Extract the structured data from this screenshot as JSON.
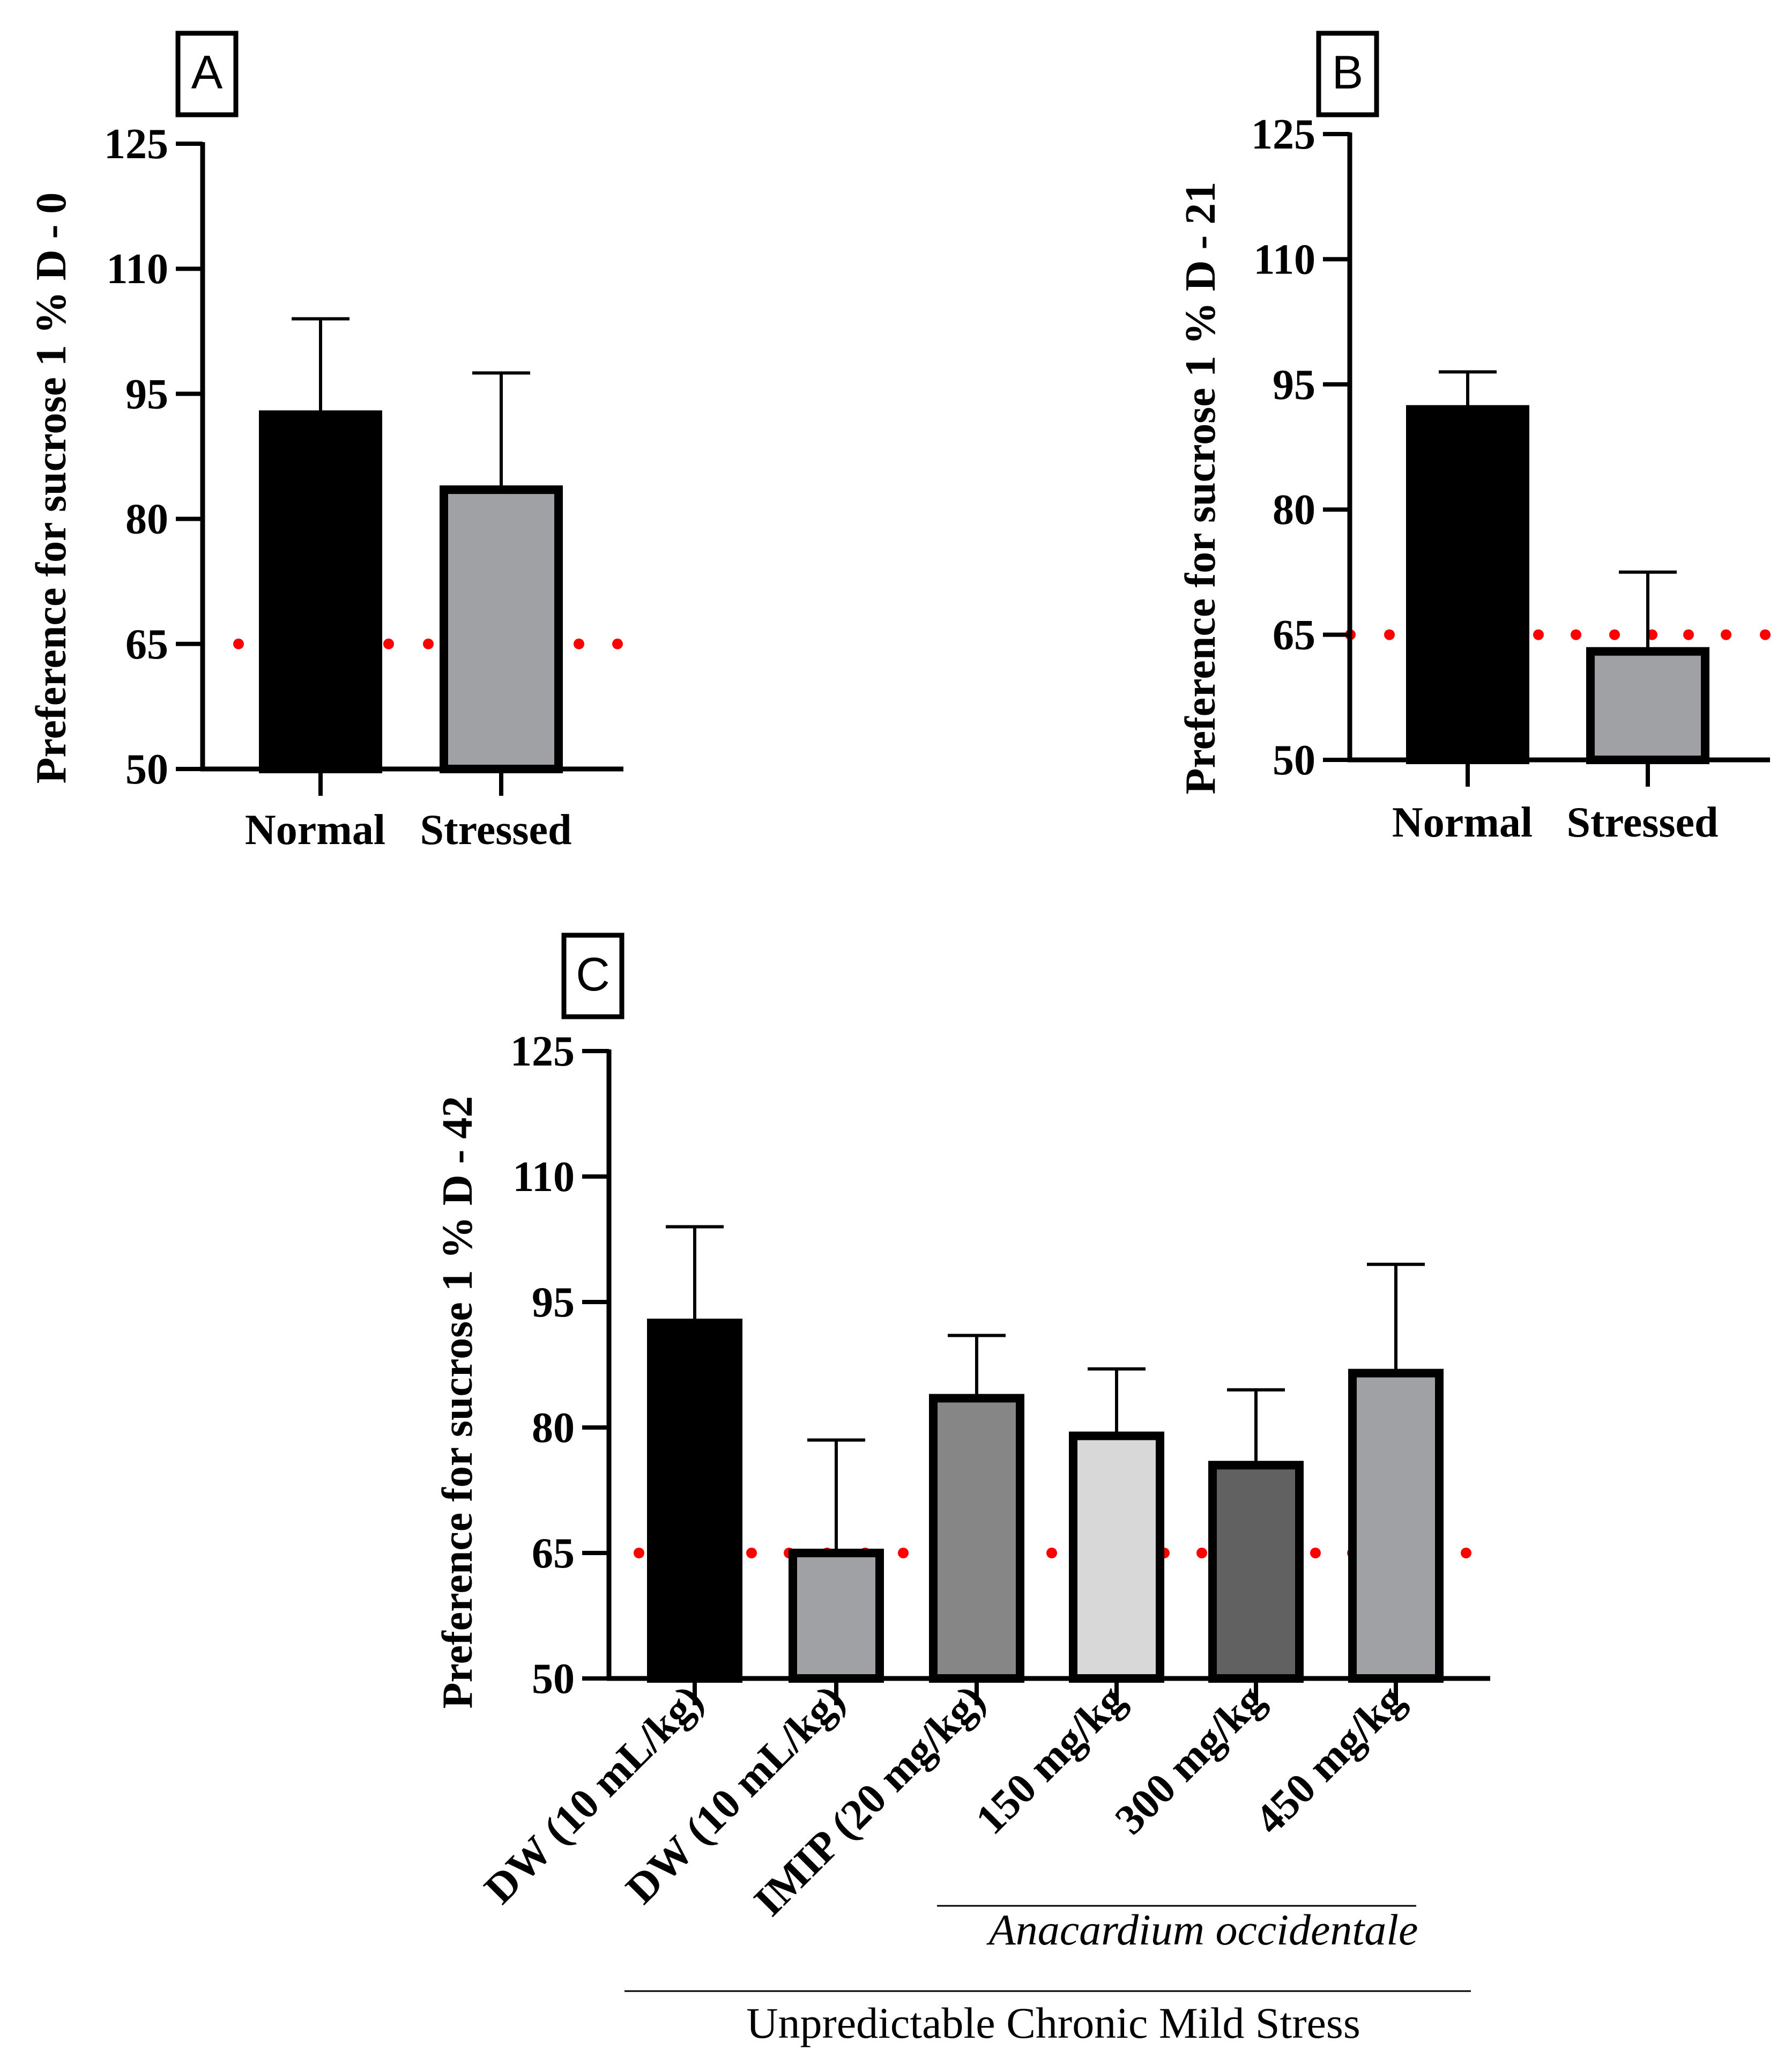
{
  "colors": {
    "axis": "#000000",
    "reference_line": "#ff0000",
    "bar_black": "#000000",
    "bar_gray": "#a0a1a5",
    "bar_dark_gray": "#868686",
    "bar_light_gray": "#d8d8d8",
    "bar_charcoal": "#616161"
  },
  "chart_data": [
    {
      "panel": "A",
      "type": "bar",
      "ylabel": "Preference for sucrose 1 % D - 0",
      "ylim": [
        50,
        125
      ],
      "yticks": [
        50,
        65,
        80,
        95,
        110,
        125
      ],
      "reference_line": 65,
      "categories": [
        "Normal",
        "Stressed"
      ],
      "values": [
        92.5,
        83.5
      ],
      "errors": [
        11.5,
        14
      ],
      "fills": [
        "bar_black",
        "bar_gray"
      ]
    },
    {
      "panel": "B",
      "type": "bar",
      "ylabel": "Preference for sucrose 1 % D - 21",
      "ylim": [
        50,
        125
      ],
      "yticks": [
        50,
        65,
        80,
        95,
        110,
        125
      ],
      "reference_line": 65,
      "categories": [
        "Normal",
        "Stressed"
      ],
      "values": [
        92,
        63
      ],
      "errors": [
        4.5,
        9.5
      ],
      "fills": [
        "bar_black",
        "bar_gray"
      ]
    },
    {
      "panel": "C",
      "type": "bar",
      "ylabel": "Preference for sucrose 1 % D - 42",
      "ylim": [
        50,
        125
      ],
      "yticks": [
        50,
        65,
        80,
        95,
        110,
        125
      ],
      "reference_line": 65,
      "categories": [
        "DW (10 mL/kg)",
        "DW (10 mL/kg)",
        "IMIP (20 mg/kg)",
        "150 mg/kg",
        "300 mg/kg",
        "450 mg/kg"
      ],
      "values": [
        92.5,
        65,
        83.5,
        79,
        75.5,
        86.5
      ],
      "errors": [
        11.5,
        13.5,
        7.5,
        8,
        9,
        13
      ],
      "fills": [
        "bar_black",
        "bar_gray",
        "bar_dark_gray",
        "bar_light_gray",
        "bar_charcoal",
        "bar_gray"
      ],
      "groups": {
        "plant": "Anacardium occidentale",
        "stress": "Unpredictable Chronic Mild Stress"
      }
    }
  ]
}
